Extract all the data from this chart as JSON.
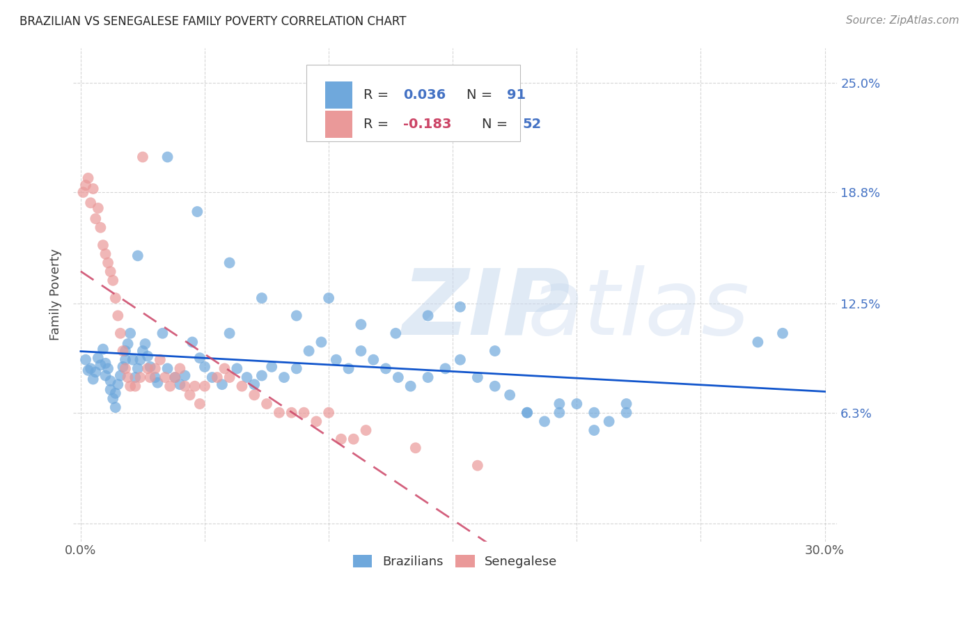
{
  "title": "BRAZILIAN VS SENEGALESE FAMILY POVERTY CORRELATION CHART",
  "source": "Source: ZipAtlas.com",
  "ylabel": "Family Poverty",
  "xlim": [
    0.0,
    0.3
  ],
  "ylim": [
    0.0,
    0.27
  ],
  "xtick_positions": [
    0.0,
    0.05,
    0.1,
    0.15,
    0.2,
    0.25,
    0.3
  ],
  "xtick_labels": [
    "0.0%",
    "",
    "",
    "",
    "",
    "",
    "30.0%"
  ],
  "ytick_positions": [
    0.0,
    0.063,
    0.125,
    0.188,
    0.25
  ],
  "ytick_labels": [
    "",
    "6.3%",
    "12.5%",
    "18.8%",
    "25.0%"
  ],
  "brazil_R": 0.036,
  "brazil_N": 91,
  "senegal_R": -0.183,
  "senegal_N": 52,
  "brazil_color": "#6fa8dc",
  "senegal_color": "#ea9999",
  "trend_brazil_color": "#1155cc",
  "trend_senegal_color": "#cc4466",
  "legend_brazil": "Brazilians",
  "legend_senegal": "Senegalese",
  "brazil_x": [
    0.002,
    0.003,
    0.004,
    0.005,
    0.006,
    0.007,
    0.008,
    0.009,
    0.01,
    0.01,
    0.011,
    0.012,
    0.012,
    0.013,
    0.014,
    0.014,
    0.015,
    0.016,
    0.017,
    0.018,
    0.018,
    0.019,
    0.02,
    0.021,
    0.022,
    0.023,
    0.024,
    0.025,
    0.026,
    0.027,
    0.028,
    0.03,
    0.031,
    0.033,
    0.035,
    0.038,
    0.04,
    0.042,
    0.045,
    0.048,
    0.05,
    0.053,
    0.057,
    0.06,
    0.063,
    0.067,
    0.07,
    0.073,
    0.077,
    0.082,
    0.087,
    0.092,
    0.097,
    0.103,
    0.108,
    0.113,
    0.118,
    0.123,
    0.128,
    0.133,
    0.14,
    0.147,
    0.153,
    0.16,
    0.167,
    0.173,
    0.18,
    0.187,
    0.193,
    0.2,
    0.207,
    0.213,
    0.22,
    0.023,
    0.035,
    0.047,
    0.06,
    0.073,
    0.087,
    0.1,
    0.113,
    0.127,
    0.14,
    0.153,
    0.167,
    0.18,
    0.193,
    0.207,
    0.22,
    0.273,
    0.283
  ],
  "brazil_y": [
    0.093,
    0.087,
    0.088,
    0.082,
    0.086,
    0.094,
    0.09,
    0.099,
    0.091,
    0.084,
    0.088,
    0.081,
    0.076,
    0.071,
    0.066,
    0.074,
    0.079,
    0.084,
    0.089,
    0.098,
    0.093,
    0.102,
    0.108,
    0.093,
    0.083,
    0.088,
    0.093,
    0.098,
    0.102,
    0.095,
    0.089,
    0.083,
    0.08,
    0.108,
    0.088,
    0.083,
    0.079,
    0.084,
    0.103,
    0.094,
    0.089,
    0.083,
    0.079,
    0.108,
    0.088,
    0.083,
    0.079,
    0.084,
    0.089,
    0.083,
    0.088,
    0.098,
    0.103,
    0.093,
    0.088,
    0.098,
    0.093,
    0.088,
    0.083,
    0.078,
    0.083,
    0.088,
    0.093,
    0.083,
    0.078,
    0.073,
    0.063,
    0.058,
    0.063,
    0.068,
    0.063,
    0.058,
    0.063,
    0.152,
    0.208,
    0.177,
    0.148,
    0.128,
    0.118,
    0.128,
    0.113,
    0.108,
    0.118,
    0.123,
    0.098,
    0.063,
    0.068,
    0.053,
    0.068,
    0.103,
    0.108
  ],
  "senegal_x": [
    0.001,
    0.002,
    0.003,
    0.004,
    0.005,
    0.006,
    0.007,
    0.008,
    0.009,
    0.01,
    0.011,
    0.012,
    0.013,
    0.014,
    0.015,
    0.016,
    0.017,
    0.018,
    0.019,
    0.02,
    0.022,
    0.024,
    0.025,
    0.027,
    0.028,
    0.03,
    0.032,
    0.034,
    0.036,
    0.038,
    0.04,
    0.042,
    0.044,
    0.046,
    0.048,
    0.05,
    0.055,
    0.058,
    0.06,
    0.065,
    0.07,
    0.075,
    0.08,
    0.085,
    0.09,
    0.095,
    0.1,
    0.105,
    0.11,
    0.115,
    0.135,
    0.16
  ],
  "senegal_y": [
    0.188,
    0.192,
    0.196,
    0.182,
    0.19,
    0.173,
    0.179,
    0.168,
    0.158,
    0.153,
    0.148,
    0.143,
    0.138,
    0.128,
    0.118,
    0.108,
    0.098,
    0.088,
    0.083,
    0.078,
    0.078,
    0.083,
    0.208,
    0.088,
    0.083,
    0.088,
    0.093,
    0.083,
    0.078,
    0.083,
    0.088,
    0.078,
    0.073,
    0.078,
    0.068,
    0.078,
    0.083,
    0.088,
    0.083,
    0.078,
    0.073,
    0.068,
    0.063,
    0.063,
    0.063,
    0.058,
    0.063,
    0.048,
    0.048,
    0.053,
    0.043,
    0.033
  ]
}
